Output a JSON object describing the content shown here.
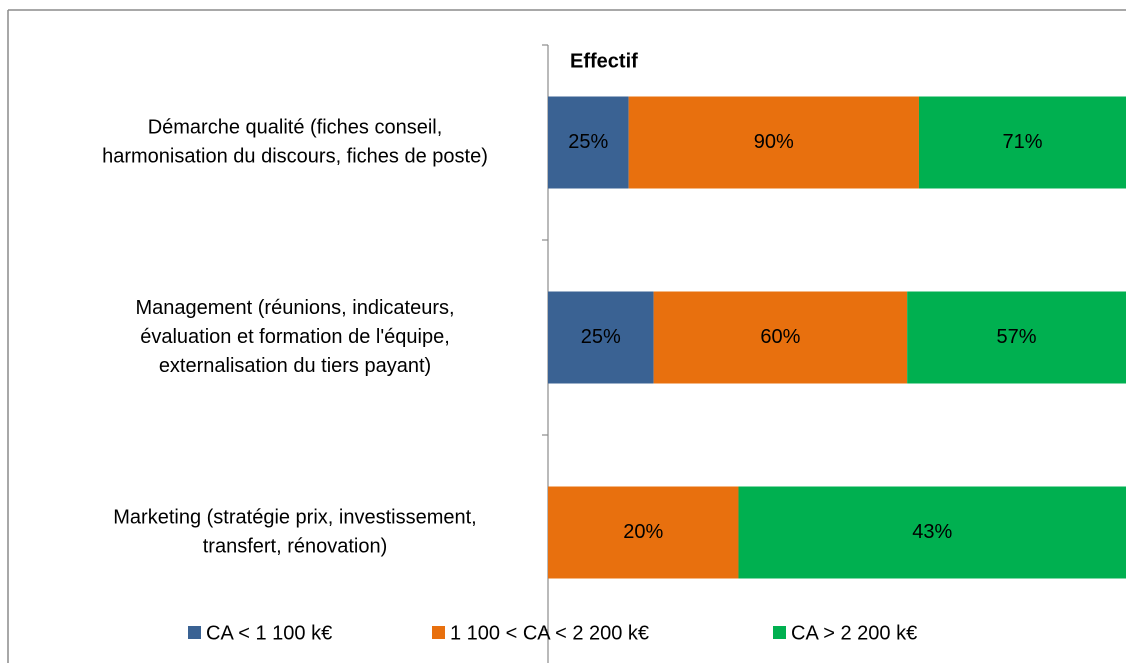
{
  "chart_data": {
    "type": "bar",
    "orientation": "horizontal",
    "stacking": "percent",
    "title": "Effectif",
    "categories": [
      [
        "Démarche qualité (fiches conseil,",
        "harmonisation du discours, fiches de poste)"
      ],
      [
        "Management (réunions, indicateurs,",
        "évaluation et formation de l'équipe,",
        "externalisation du tiers payant)"
      ],
      [
        "Marketing (stratégie prix, investissement,",
        "transfert, rénovation)"
      ]
    ],
    "series": [
      {
        "name": "CA < 1 100 k€",
        "color": "#3a6293",
        "label_color": "#ffffff",
        "values": [
          25,
          25,
          null
        ],
        "value_labels": [
          "25%",
          "25%",
          null
        ]
      },
      {
        "name": "1 100 < CA < 2 200 k€",
        "color": "#e8700e",
        "label_color": "#000000",
        "values": [
          90,
          60,
          20
        ],
        "value_labels": [
          "90%",
          "60%",
          "20%"
        ]
      },
      {
        "name": "CA > 2 200 k€",
        "color": "#00b050",
        "label_color": "#000000",
        "values": [
          71,
          57,
          43
        ],
        "value_labels": [
          "71%",
          "57%",
          "43%"
        ]
      }
    ],
    "legend": "bottom"
  }
}
